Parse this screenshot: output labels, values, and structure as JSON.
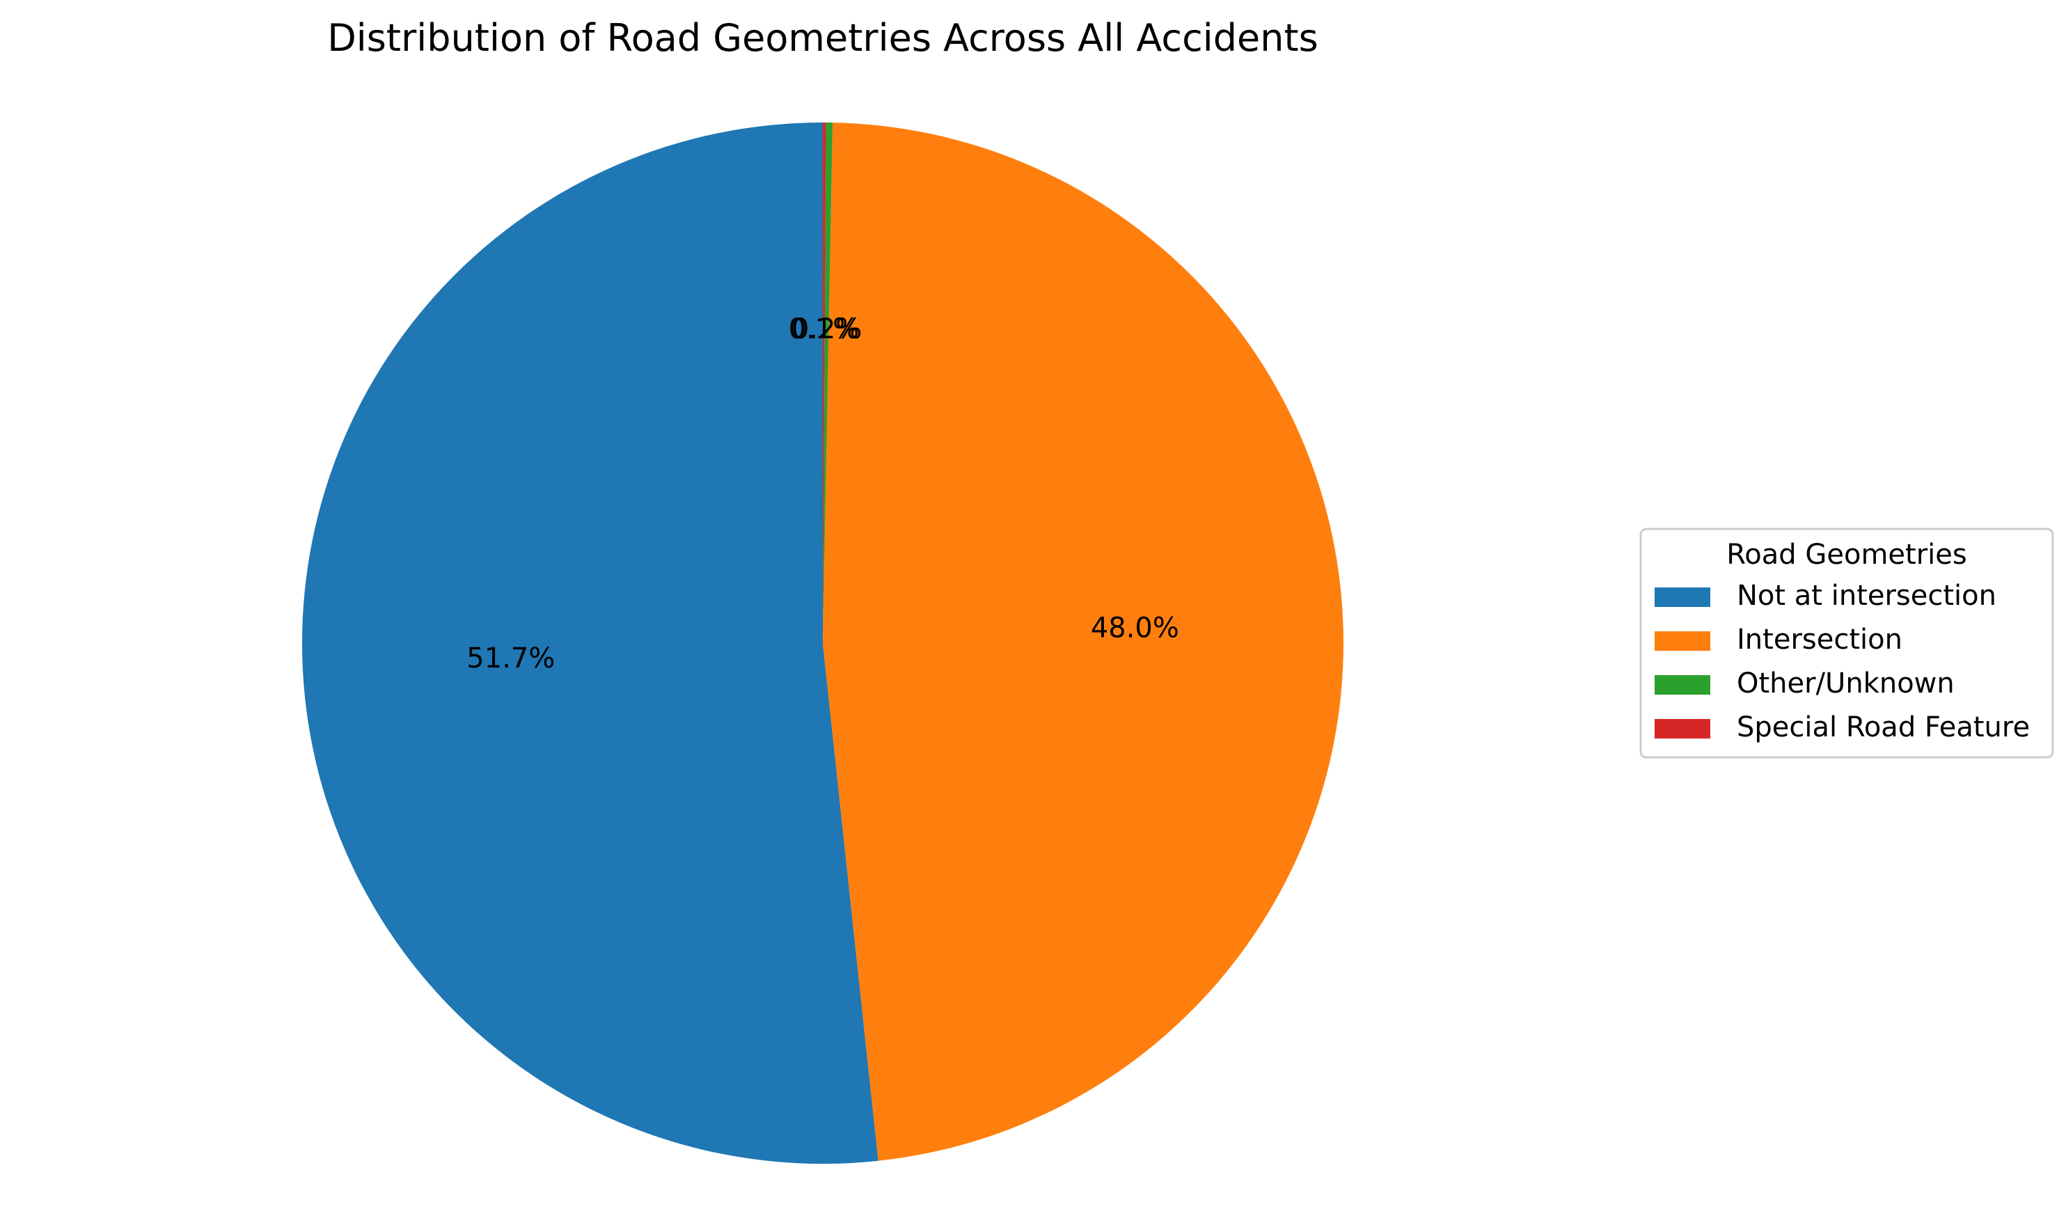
{
  "chart_data": {
    "type": "pie",
    "title": "Distribution of Road Geometries Across All Accidents",
    "categories": [
      "Not at intersection",
      "Intersection",
      "Other/Unknown",
      "Special Road Feature"
    ],
    "values": [
      51.7,
      48.0,
      0.2,
      0.1
    ],
    "labels": [
      "51.7%",
      "48.0%",
      "0.2%",
      "0.1%"
    ],
    "colors": [
      "#1f77b4",
      "#ff7f0e",
      "#2ca02c",
      "#d62728"
    ],
    "legend": {
      "title": "Road Geometries",
      "placement": "center-right"
    }
  }
}
